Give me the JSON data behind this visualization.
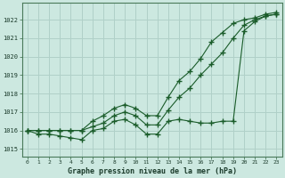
{
  "title": "Graphe pression niveau de la mer (hPa)",
  "background_color": "#cce8e0",
  "grid_color": "#b0d0c8",
  "line_color": "#1a5c2a",
  "xlim": [
    -0.5,
    23.5
  ],
  "ylim": [
    1014.6,
    1022.9
  ],
  "yticks": [
    1015,
    1016,
    1017,
    1018,
    1019,
    1020,
    1021,
    1022
  ],
  "xticks": [
    0,
    1,
    2,
    3,
    4,
    5,
    6,
    7,
    8,
    9,
    10,
    11,
    12,
    13,
    14,
    15,
    16,
    17,
    18,
    19,
    20,
    21,
    22,
    23
  ],
  "series_noisy": [
    1016.0,
    1015.8,
    1015.8,
    1015.7,
    1015.6,
    1015.5,
    1016.0,
    1016.1,
    1016.5,
    1016.6,
    1016.3,
    1015.8,
    1015.8,
    1016.5,
    1016.6,
    1016.5,
    1016.4,
    1016.4,
    1016.5,
    1016.5,
    1021.4,
    1021.9,
    1022.2,
    1022.3
  ],
  "series_mid": [
    1016.0,
    1016.0,
    1016.0,
    1016.0,
    1016.0,
    1016.0,
    1016.2,
    1016.4,
    1016.8,
    1017.0,
    1016.8,
    1016.3,
    1016.3,
    1017.1,
    1017.8,
    1018.3,
    1019.0,
    1019.6,
    1020.2,
    1021.0,
    1021.7,
    1022.0,
    1022.2,
    1022.3
  ],
  "series_top": [
    1016.0,
    1016.0,
    1016.0,
    1016.0,
    1016.0,
    1016.0,
    1016.5,
    1016.8,
    1017.2,
    1017.4,
    1017.2,
    1016.8,
    1016.8,
    1017.8,
    1018.7,
    1019.2,
    1019.9,
    1020.8,
    1021.3,
    1021.8,
    1022.0,
    1022.1,
    1022.3,
    1022.4
  ]
}
